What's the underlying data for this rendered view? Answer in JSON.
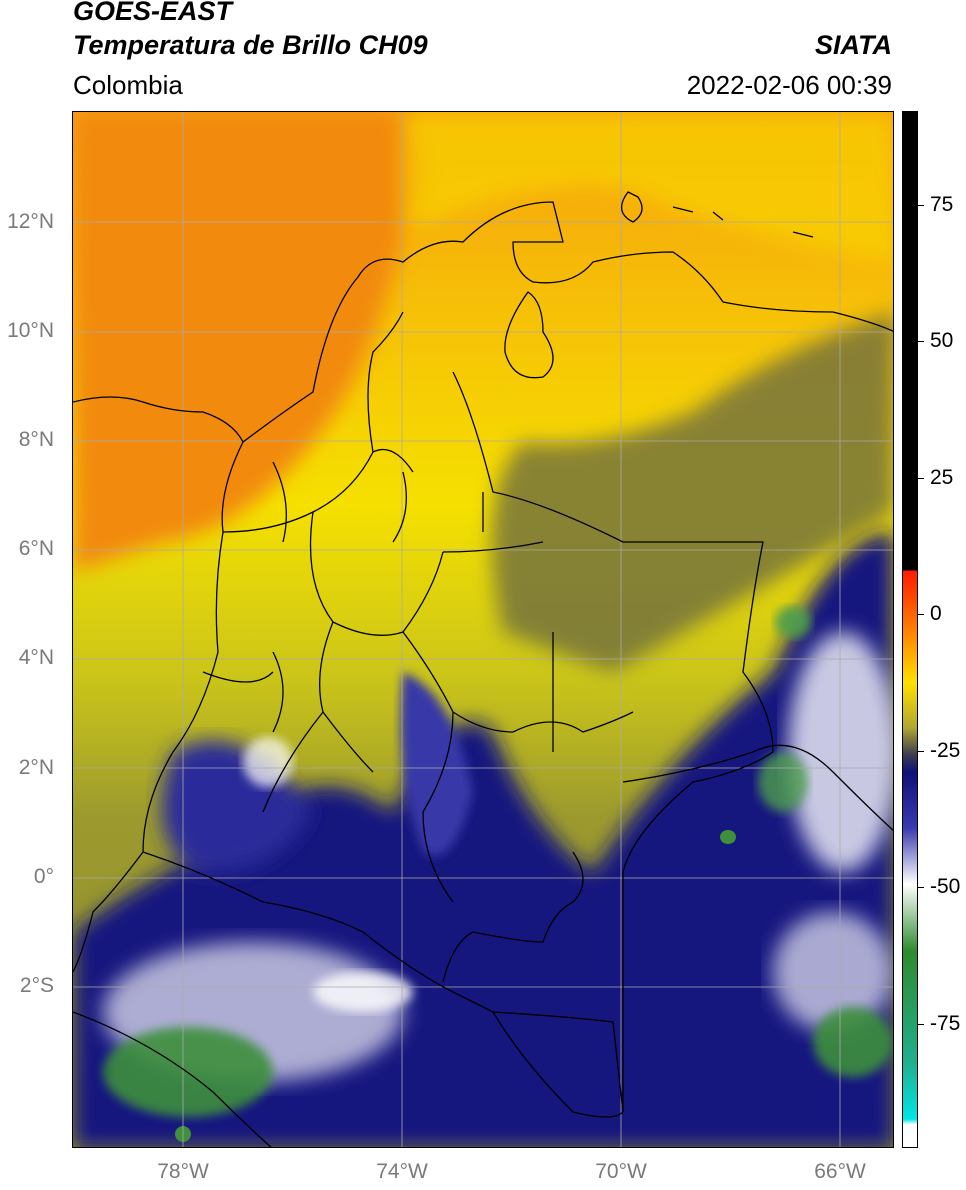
{
  "header": {
    "line1": "GOES-EAST",
    "line2": "Temperatura de Brillo CH09",
    "brand": "SIATA",
    "region": "Colombia",
    "datetime": "2022-02-06 00:39"
  },
  "map": {
    "lat_labels": [
      "12°N",
      "10°N",
      "8°N",
      "6°N",
      "4°N",
      "2°N",
      "0°",
      "2°S"
    ],
    "lon_labels": [
      "78°W",
      "74°W",
      "70°W",
      "66°W"
    ]
  },
  "colorbar": {
    "tick_labels": [
      "75",
      "50",
      "25",
      "0",
      "-25",
      "-50",
      "-75"
    ],
    "stops": [
      {
        "value": 90,
        "color": "#000000"
      },
      {
        "value": 8,
        "color": "#000000"
      },
      {
        "value": 8,
        "color": "#ff1a00"
      },
      {
        "value": -2,
        "color": "#ff7a00"
      },
      {
        "value": -12,
        "color": "#ffe000"
      },
      {
        "value": -20,
        "color": "#b0a830"
      },
      {
        "value": -25,
        "color": "#3a3a50"
      },
      {
        "value": -28,
        "color": "#10107a"
      },
      {
        "value": -38,
        "color": "#3a3ab0"
      },
      {
        "value": -48,
        "color": "#ffffff"
      },
      {
        "value": -60,
        "color": "#2e8b2e"
      },
      {
        "value": -80,
        "color": "#20b090"
      },
      {
        "value": -90,
        "color": "#00e6e6"
      },
      {
        "value": -91,
        "color": "#ffffff"
      },
      {
        "value": -95,
        "color": "#ffffff"
      }
    ]
  },
  "colors": {
    "orange": "#f7870e",
    "yellow": "#f5e500",
    "olive": "#9c9a2e",
    "navy": "#15157f",
    "white": "#ffffff",
    "green": "#3e8f3e"
  }
}
